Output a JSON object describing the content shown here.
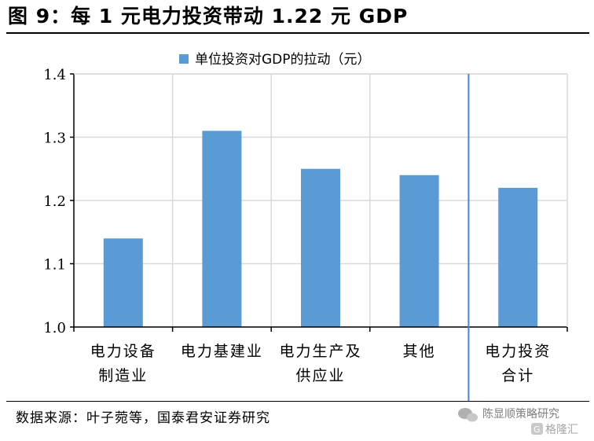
{
  "figure": {
    "title": "图 9：每 1 元电力投资带动 1.22 元 GDP",
    "source": "数据来源：叶子菀等，国泰君安证券研究"
  },
  "watermark": {
    "line1": "陈显顺策略研究",
    "line2": "格隆汇"
  },
  "colors": {
    "bar": "#5b9bd5",
    "divider": "#4a86c8",
    "grid": "#d9d9d9",
    "axis": "#000000"
  },
  "chart_data": {
    "type": "bar",
    "categories": [
      [
        "电力设备",
        "制造业"
      ],
      [
        "电力基建业"
      ],
      [
        "电力生产及",
        "供应业"
      ],
      [
        "其他"
      ],
      [
        "电力投资",
        "合计"
      ]
    ],
    "series": [
      {
        "name": "单位投资对GDP的拉动（元）",
        "values": [
          1.14,
          1.31,
          1.25,
          1.24,
          1.22
        ]
      }
    ],
    "ylim": [
      1.0,
      1.4
    ],
    "yticks": [
      "1.0",
      "1.1",
      "1.2",
      "1.3",
      "1.4"
    ],
    "grid": true,
    "legend": "top-center",
    "divider_after_category": 4
  }
}
